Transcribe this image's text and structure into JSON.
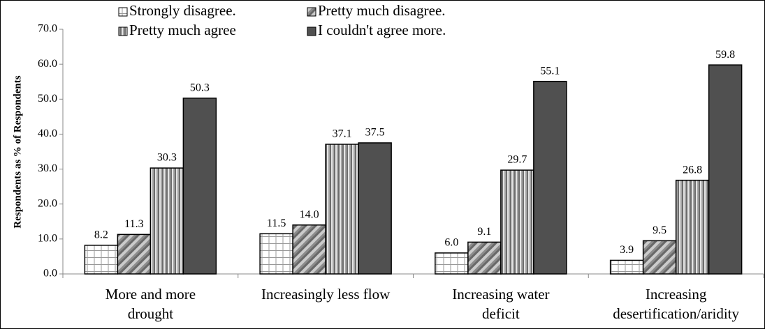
{
  "chart_data": {
    "type": "bar",
    "y_label": "Respondents as % of Respondents",
    "categories": [
      "More and more\ndrought",
      "Increasingly less flow",
      "Increasing water\ndeficit",
      "Increasing\ndesertification/aridity"
    ],
    "series": [
      {
        "name": "Strongly disagree.",
        "color": "#ffffff",
        "values": [
          8.2,
          11.5,
          6.0,
          3.9
        ],
        "value_labels": [
          "8.2",
          "11.5",
          "6.0",
          "3.9"
        ]
      },
      {
        "name": "Pretty much disagree.",
        "color": "#8c8c8c",
        "values": [
          11.3,
          14.0,
          9.1,
          9.5
        ],
        "value_labels": [
          "11.3",
          "14.0",
          "9.1",
          "9.5"
        ]
      },
      {
        "name": "Pretty much agree",
        "color": "#a6a6a6",
        "values": [
          30.3,
          37.1,
          29.7,
          26.8
        ],
        "value_labels": [
          "30.3",
          "37.1",
          "29.7",
          "26.8"
        ]
      },
      {
        "name": "I couldn't agree more.",
        "color": "#505050",
        "values": [
          50.3,
          37.5,
          55.1,
          59.8
        ],
        "value_labels": [
          "50.3",
          "37.5",
          "55.1",
          "59.8"
        ]
      }
    ],
    "ylim": [
      0,
      70
    ],
    "yticks": [
      {
        "value": 0,
        "label": "0.0"
      },
      {
        "value": 10,
        "label": "10.0"
      },
      {
        "value": 20,
        "label": "20.0"
      },
      {
        "value": 30,
        "label": "30.0"
      },
      {
        "value": 40,
        "label": "40.0"
      },
      {
        "value": 50,
        "label": "50.0"
      },
      {
        "value": 60,
        "label": "60.0"
      },
      {
        "value": 70,
        "label": "70.0"
      }
    ],
    "grid": false,
    "legend": "top"
  }
}
